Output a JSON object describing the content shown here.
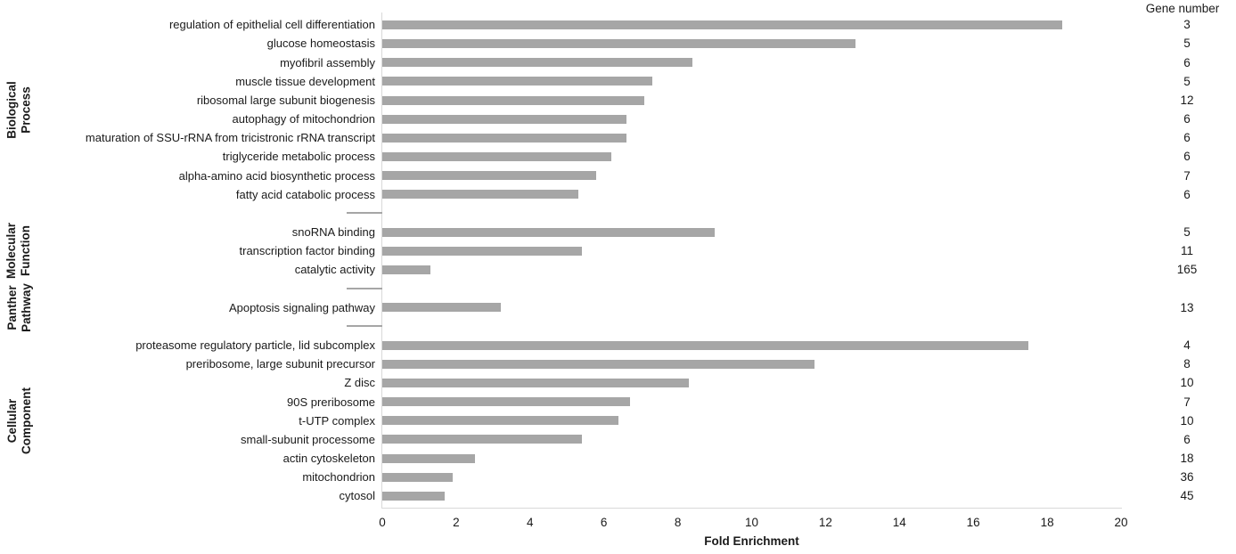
{
  "chart_data": {
    "type": "bar",
    "orientation": "horizontal",
    "xlabel": "Fold Enrichment",
    "gene_header": "Gene number",
    "xlim": [
      0,
      20
    ],
    "xtick_step": 2,
    "grid": false,
    "legend": false,
    "bar_color": "#a6a6a6",
    "axis_color": "#d9d9d9",
    "separator_color": "#a6a6a6",
    "groups": [
      {
        "name": "Biological Process",
        "name_lines": "Biological\nProcess",
        "items": [
          {
            "label": "regulation of epithelial cell differentiation",
            "fold": 18.4,
            "genes": 3
          },
          {
            "label": "glucose homeostasis",
            "fold": 12.8,
            "genes": 5
          },
          {
            "label": "myofibril assembly",
            "fold": 8.4,
            "genes": 6
          },
          {
            "label": "muscle tissue development",
            "fold": 7.3,
            "genes": 5
          },
          {
            "label": "ribosomal large subunit biogenesis",
            "fold": 7.1,
            "genes": 12
          },
          {
            "label": "autophagy of mitochondrion",
            "fold": 6.6,
            "genes": 6
          },
          {
            "label": "maturation of SSU-rRNA from tricistronic rRNA transcript",
            "fold": 6.6,
            "genes": 6
          },
          {
            "label": "triglyceride metabolic process",
            "fold": 6.2,
            "genes": 6
          },
          {
            "label": "alpha-amino acid biosynthetic process",
            "fold": 5.8,
            "genes": 7
          },
          {
            "label": "fatty acid catabolic process",
            "fold": 5.3,
            "genes": 6
          }
        ]
      },
      {
        "name": "Molecular Function",
        "name_lines": "Molecular\nFunction",
        "items": [
          {
            "label": "snoRNA binding",
            "fold": 9.0,
            "genes": 5
          },
          {
            "label": "transcription factor binding",
            "fold": 5.4,
            "genes": 11
          },
          {
            "label": "catalytic activity",
            "fold": 1.3,
            "genes": 165
          }
        ]
      },
      {
        "name": "Panther Pathway",
        "name_lines": "Panther\nPathway",
        "items": [
          {
            "label": "Apoptosis signaling pathway",
            "fold": 3.2,
            "genes": 13
          }
        ]
      },
      {
        "name": "Cellular Component",
        "name_lines": "Cellular\nComponent",
        "items": [
          {
            "label": "proteasome regulatory particle, lid subcomplex",
            "fold": 17.5,
            "genes": 4
          },
          {
            "label": "preribosome, large subunit precursor",
            "fold": 11.7,
            "genes": 8
          },
          {
            "label": "Z disc",
            "fold": 8.3,
            "genes": 10
          },
          {
            "label": "90S preribosome",
            "fold": 6.7,
            "genes": 7
          },
          {
            "label": "t-UTP complex",
            "fold": 6.4,
            "genes": 10
          },
          {
            "label": "small-subunit processome",
            "fold": 5.4,
            "genes": 6
          },
          {
            "label": "actin cytoskeleton",
            "fold": 2.5,
            "genes": 18
          },
          {
            "label": "mitochondrion",
            "fold": 1.9,
            "genes": 36
          },
          {
            "label": "cytosol",
            "fold": 1.7,
            "genes": 45
          }
        ]
      }
    ]
  }
}
